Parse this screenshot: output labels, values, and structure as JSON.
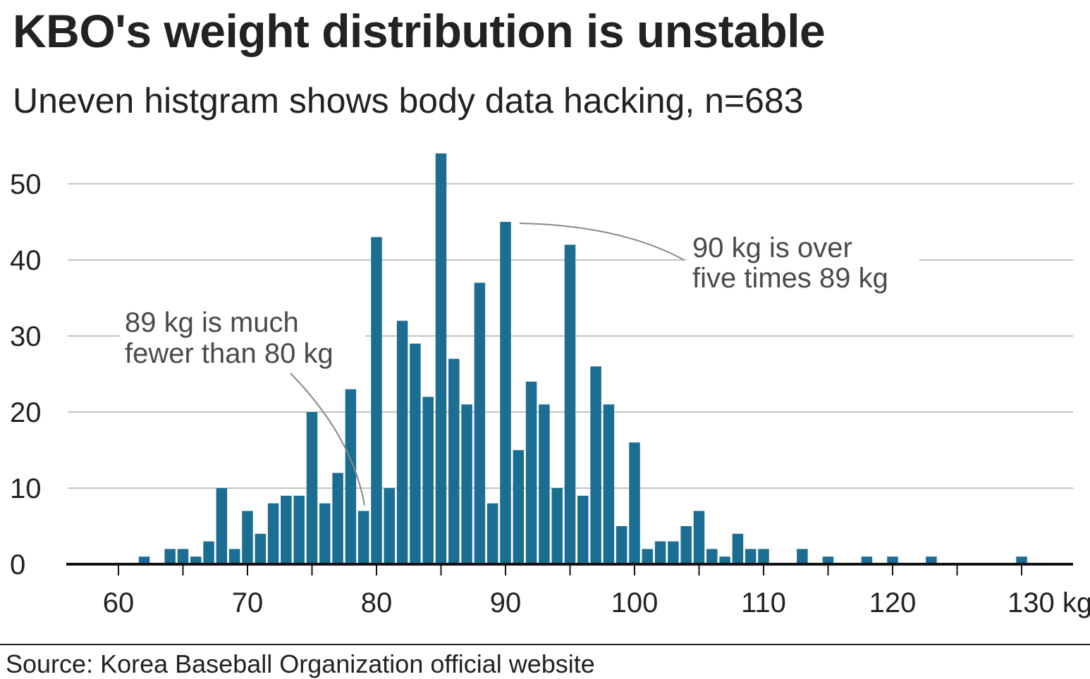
{
  "title": "KBO's weight distribution is unstable",
  "subtitle": "Uneven histgram shows body data hacking, n=683",
  "source": "Source: Korea Baseball Organization official website",
  "colors": {
    "bar": "#1b6e91",
    "grid": "#c3c3c3",
    "axis": "#111111",
    "annotation": "#4a4a4a",
    "leader": "#888888"
  },
  "chart_data": {
    "type": "bar",
    "x": [
      62,
      64,
      65,
      66,
      67,
      68,
      69,
      70,
      71,
      72,
      73,
      74,
      75,
      76,
      77,
      78,
      79,
      80,
      81,
      82,
      83,
      84,
      85,
      86,
      87,
      88,
      89,
      90,
      91,
      92,
      93,
      94,
      95,
      96,
      97,
      98,
      99,
      100,
      101,
      102,
      103,
      104,
      105,
      106,
      107,
      108,
      109,
      110,
      113,
      115,
      118,
      120,
      123,
      130
    ],
    "values": [
      1,
      2,
      2,
      1,
      3,
      10,
      2,
      7,
      4,
      8,
      9,
      9,
      20,
      8,
      12,
      23,
      7,
      43,
      10,
      32,
      29,
      22,
      54,
      27,
      21,
      37,
      8,
      45,
      15,
      24,
      21,
      10,
      42,
      9,
      26,
      21,
      5,
      16,
      2,
      3,
      3,
      5,
      7,
      2,
      1,
      4,
      2,
      2,
      2,
      1,
      1,
      1,
      1,
      1
    ],
    "xlim": [
      56,
      134
    ],
    "ylim": [
      0,
      55
    ],
    "xticks": [
      60,
      65,
      70,
      75,
      80,
      85,
      90,
      95,
      100,
      105,
      110,
      115,
      120,
      125,
      130
    ],
    "xtick_labels": [
      {
        "value": 60,
        "label": "60"
      },
      {
        "value": 70,
        "label": "70"
      },
      {
        "value": 80,
        "label": "80"
      },
      {
        "value": 90,
        "label": "90"
      },
      {
        "value": 100,
        "label": "100"
      },
      {
        "value": 110,
        "label": "110"
      },
      {
        "value": 120,
        "label": "120"
      },
      {
        "value": 130,
        "label": "130 kg"
      }
    ],
    "yticks": [
      0,
      10,
      20,
      30,
      40,
      50
    ],
    "ytick_labels": [
      "0",
      "10",
      "20",
      "30",
      "40",
      "50"
    ],
    "grid": true,
    "annotations": [
      {
        "lines": [
          "89 kg is much",
          "fewer than 80 kg"
        ],
        "points_to": {
          "x": 79,
          "y": 7
        }
      },
      {
        "lines": [
          "90 kg is over",
          "five times 89 kg"
        ],
        "points_to": {
          "x": 90,
          "y": 45
        }
      }
    ]
  }
}
